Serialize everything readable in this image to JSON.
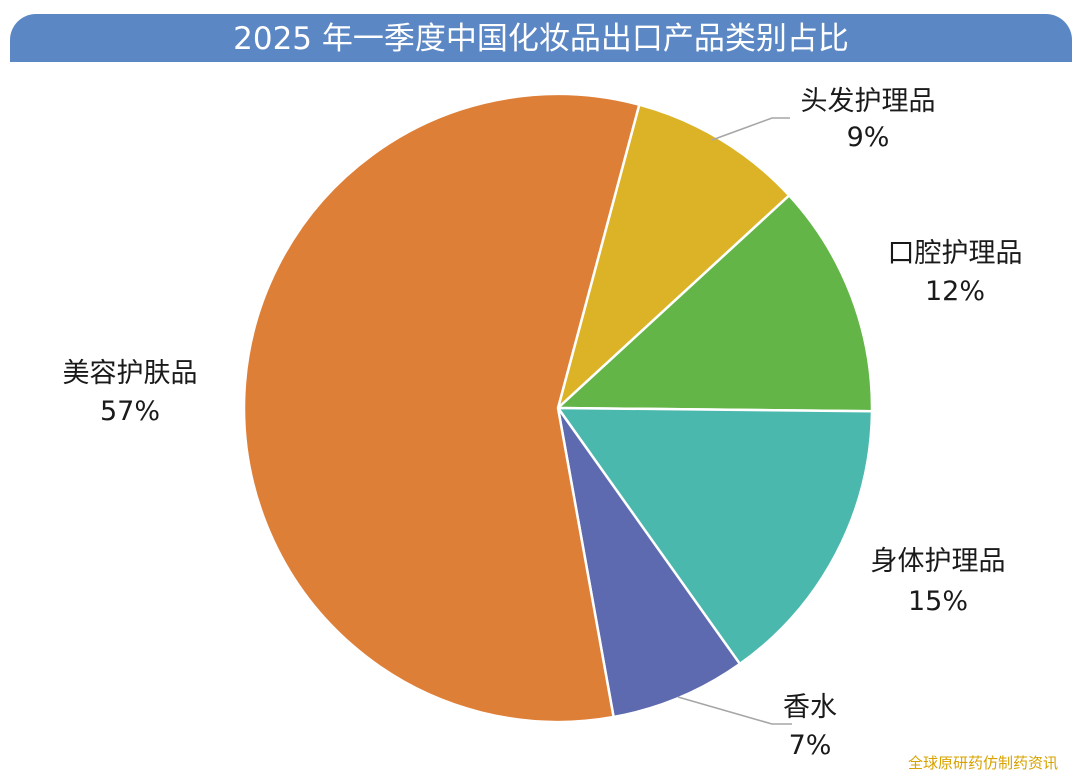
{
  "title": "2025 年一季度中国化妆品出口产品类别占比",
  "watermark": "全球原研药仿制药资讯",
  "chart_data": {
    "type": "pie",
    "title": "2025 年一季度中国化妆品出口产品类别占比",
    "unit": "%",
    "start": "top, clockwise",
    "legend": "none (labels beside slices)",
    "slices": [
      {
        "name": "头发护理品",
        "value": 9,
        "label": "9%",
        "color": "#dcb327"
      },
      {
        "name": "口腔护理品",
        "value": 12,
        "label": "12%",
        "color": "#63b548"
      },
      {
        "name": "身体护理品",
        "value": 15,
        "label": "15%",
        "color": "#4bb8ae"
      },
      {
        "name": "香水",
        "value": 7,
        "label": "7%",
        "color": "#5e6aaf"
      },
      {
        "name": "美容护肤品",
        "value": 57,
        "label": "57%",
        "color": "#de7f38"
      }
    ]
  }
}
